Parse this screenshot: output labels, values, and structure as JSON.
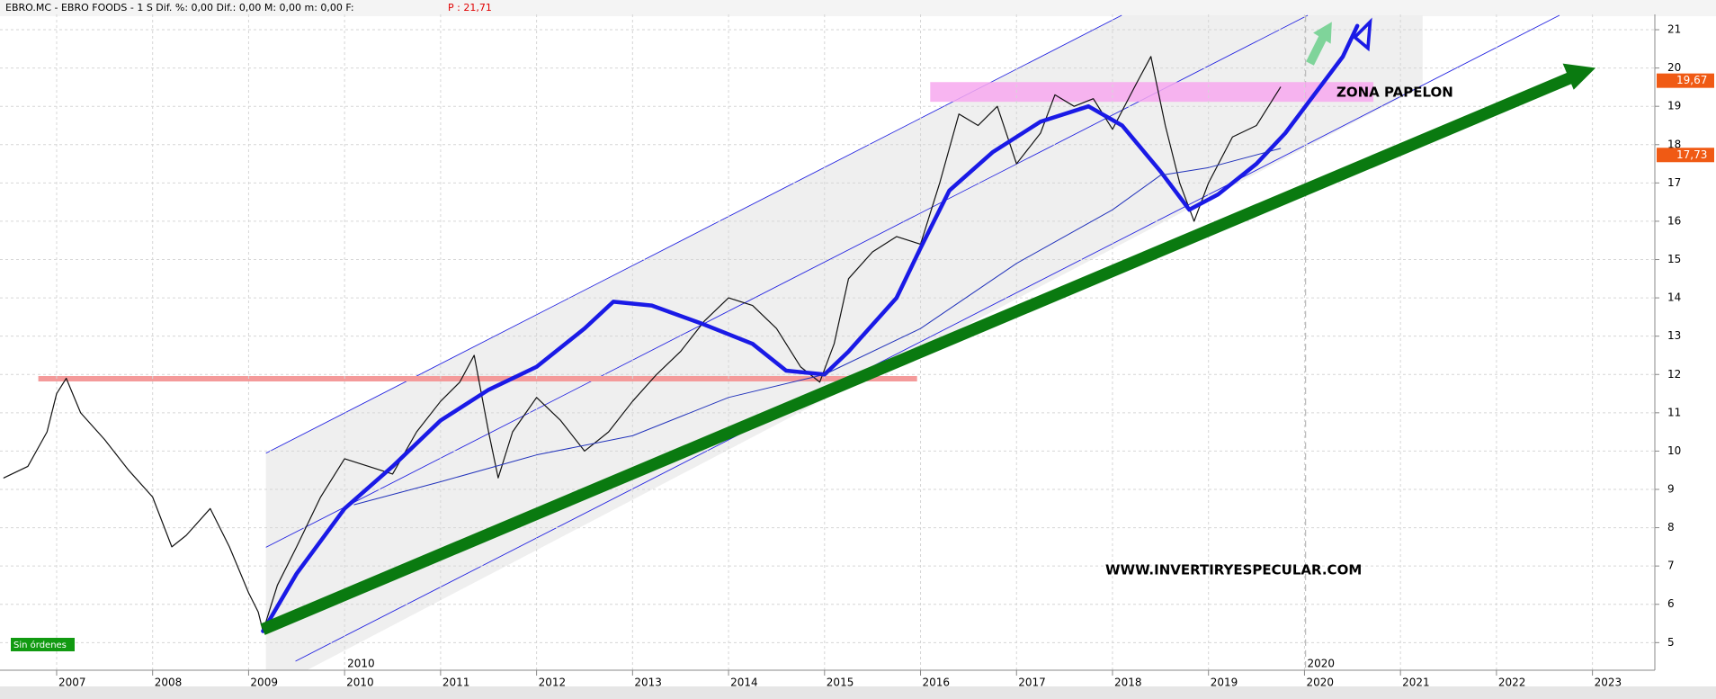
{
  "chart_data": {
    "type": "line",
    "header": "EBRO.MC - EBRO FOODS -  1 S Dif. %: 0,00 Dif.: 0,00 M: 0,00 m: 0,00 F:",
    "header_price": "P : 21,71",
    "annotations": [
      "ZONA PAPELON",
      "WWW.INVERTIRYESPECULAR.COM"
    ],
    "status": "Sin órdenes",
    "decade_labels": [
      {
        "value": 2010,
        "label": "2010"
      },
      {
        "value": 2020,
        "label": "2020"
      }
    ],
    "xlim": [
      2006.41,
      2023.65
    ],
    "xticks": [
      2007,
      2008,
      2009,
      2010,
      2011,
      2012,
      2013,
      2014,
      2015,
      2016,
      2017,
      2018,
      2019,
      2020,
      2021,
      2022,
      2023
    ],
    "ylim": [
      4.35,
      21.4
    ],
    "yticks": [
      5,
      6,
      7,
      8,
      9,
      10,
      11,
      12,
      13,
      14,
      15,
      16,
      17,
      18,
      19,
      20,
      21
    ],
    "grid": true,
    "price_tags": [
      {
        "value": 19.67,
        "label": "19,67"
      },
      {
        "value": 17.73,
        "label": "17,73"
      }
    ],
    "series": [
      {
        "color": "#111111",
        "width": 1.2,
        "x": [
          2006.45,
          2006.7,
          2006.9,
          2007.0,
          2007.1,
          2007.25,
          2007.5,
          2007.75,
          2008.0,
          2008.2,
          2008.35,
          2008.6,
          2008.8,
          2009.0,
          2009.1,
          2009.15,
          2009.3,
          2009.5,
          2009.75,
          2010.0,
          2010.25,
          2010.5,
          2010.75,
          2011.0,
          2011.2,
          2011.35,
          2011.5,
          2011.6,
          2011.75,
          2012.0,
          2012.25,
          2012.5,
          2012.75,
          2013.0,
          2013.25,
          2013.5,
          2013.75,
          2014.0,
          2014.25,
          2014.5,
          2014.75,
          2014.95,
          2015.1,
          2015.25,
          2015.5,
          2015.75,
          2016.0,
          2016.2,
          2016.4,
          2016.6,
          2016.8,
          2017.0,
          2017.25,
          2017.4,
          2017.6,
          2017.8,
          2018.0,
          2018.25,
          2018.4,
          2018.55,
          2018.7,
          2018.85,
          2019.0,
          2019.25,
          2019.5,
          2019.75
        ],
        "values": [
          9.3,
          9.6,
          10.5,
          11.5,
          11.9,
          11.0,
          10.3,
          9.5,
          8.8,
          7.5,
          7.8,
          8.5,
          7.5,
          6.3,
          5.8,
          5.3,
          6.5,
          7.5,
          8.8,
          9.8,
          9.6,
          9.4,
          10.5,
          11.3,
          11.8,
          12.5,
          10.5,
          9.3,
          10.5,
          11.4,
          10.8,
          10.0,
          10.5,
          11.3,
          12.0,
          12.6,
          13.4,
          14.0,
          13.8,
          13.2,
          12.2,
          11.8,
          12.8,
          14.5,
          15.2,
          15.6,
          15.4,
          17.0,
          18.8,
          18.5,
          19.0,
          17.5,
          18.3,
          19.3,
          19.0,
          19.2,
          18.4,
          19.6,
          20.3,
          18.5,
          17.0,
          16.0,
          17.0,
          18.2,
          18.5,
          19.5
        ]
      },
      {
        "color": "#1a1ae6",
        "width": 4.5,
        "x": [
          2009.15,
          2009.5,
          2010.0,
          2010.5,
          2011.0,
          2011.5,
          2012.0,
          2012.5,
          2012.8,
          2013.2,
          2013.75,
          2014.25,
          2014.6,
          2015.0,
          2015.25,
          2015.75,
          2016.0,
          2016.3,
          2016.75,
          2017.25,
          2017.75,
          2018.1,
          2018.5,
          2018.8,
          2019.1,
          2019.5,
          2019.8,
          2020.1,
          2020.4,
          2020.55
        ],
        "values": [
          5.3,
          6.8,
          8.5,
          9.6,
          10.8,
          11.6,
          12.2,
          13.2,
          13.9,
          13.8,
          13.3,
          12.8,
          12.1,
          12.0,
          12.6,
          14.0,
          15.3,
          16.8,
          17.8,
          18.6,
          19.0,
          18.5,
          17.3,
          16.3,
          16.7,
          17.5,
          18.3,
          19.3,
          20.3,
          21.1
        ]
      },
      {
        "color": "#2233bb",
        "width": 1,
        "x": [
          2010.1,
          2011.0,
          2012.0,
          2013.0,
          2014.0,
          2015.0,
          2016.0,
          2017.0,
          2018.0,
          2018.5,
          2019.0,
          2019.75
        ],
        "values": [
          8.6,
          9.2,
          9.9,
          10.4,
          11.4,
          12.0,
          13.2,
          14.9,
          16.3,
          17.2,
          17.4,
          17.9
        ]
      }
    ]
  }
}
